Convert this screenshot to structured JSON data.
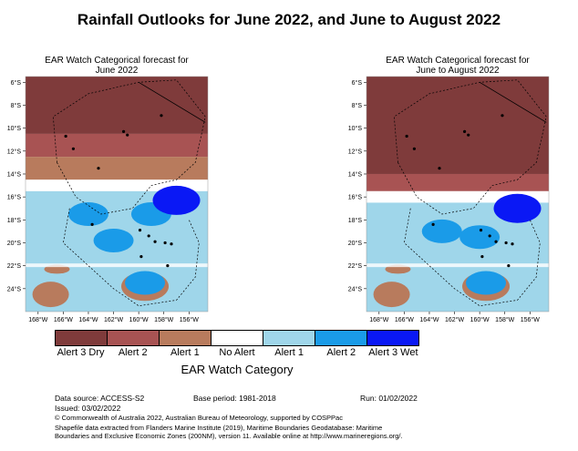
{
  "title": "Rainfall Outlooks for June 2022, and June to August 2022",
  "chart_data": [
    {
      "type": "heatmap",
      "title_line1": "EAR Watch Categorical forecast for",
      "title_line2": "June 2022",
      "x_ticks": [
        "168°W",
        "166°W",
        "164°W",
        "162°W",
        "160°W",
        "158°W",
        "156°W"
      ],
      "y_ticks": [
        "6°S",
        "8°S",
        "10°S",
        "12°S",
        "14°S",
        "16°S",
        "18°S",
        "20°S",
        "22°S",
        "24°S"
      ],
      "xlim": [
        -169,
        -154.5
      ],
      "ylim": [
        -26,
        -5.5
      ],
      "bands": [
        {
          "from_lat": -5.5,
          "to_lat": -10.5,
          "category": "Alert 3 Dry"
        },
        {
          "from_lat": -10.5,
          "to_lat": -12.5,
          "category": "Alert 2"
        },
        {
          "from_lat": -12.5,
          "to_lat": -14.5,
          "category": "Alert 1"
        },
        {
          "from_lat": -14.5,
          "to_lat": -15.5,
          "category": "No Alert"
        },
        {
          "from_lat": -15.5,
          "to_lat": -22,
          "category": "Alert 1"
        },
        {
          "from_lat": -22,
          "to_lat": -26,
          "category": "Alert 1"
        }
      ],
      "blobs": [
        {
          "lon": -159,
          "lat": -17.5,
          "category": "Alert 2"
        },
        {
          "lon": -157,
          "lat": -16.3,
          "category": "Alert 3 Wet"
        },
        {
          "lon": -162,
          "lat": -19.8,
          "category": "Alert 2"
        },
        {
          "lon": -164,
          "lat": -17.5,
          "category": "Alert 2"
        },
        {
          "lon": -159.5,
          "lat": -23.5,
          "category": "Alert 2"
        }
      ]
    },
    {
      "type": "heatmap",
      "title_line1": "EAR Watch Categorical forecast for",
      "title_line2": "June to August 2022",
      "x_ticks": [
        "168°W",
        "166°W",
        "164°W",
        "162°W",
        "160°W",
        "158°W",
        "156°W"
      ],
      "y_ticks": [
        "6°S",
        "8°S",
        "10°S",
        "12°S",
        "14°S",
        "16°S",
        "18°S",
        "20°S",
        "22°S",
        "24°S"
      ],
      "xlim": [
        -169,
        -154.5
      ],
      "ylim": [
        -26,
        -5.5
      ],
      "bands": [
        {
          "from_lat": -5.5,
          "to_lat": -14,
          "category": "Alert 3 Dry"
        },
        {
          "from_lat": -14,
          "to_lat": -15.5,
          "category": "Alert 2"
        },
        {
          "from_lat": -15.5,
          "to_lat": -16.5,
          "category": "No Alert"
        },
        {
          "from_lat": -16.5,
          "to_lat": -22,
          "category": "Alert 1"
        },
        {
          "from_lat": -22,
          "to_lat": -26,
          "category": "Alert 1"
        }
      ],
      "blobs": [
        {
          "lon": -160,
          "lat": -19.5,
          "category": "Alert 2"
        },
        {
          "lon": -157,
          "lat": -17,
          "category": "Alert 3 Wet"
        },
        {
          "lon": -163,
          "lat": -19,
          "category": "Alert 2"
        },
        {
          "lon": -159.5,
          "lat": -23.5,
          "category": "Alert 2"
        }
      ]
    }
  ],
  "legend": {
    "categories": [
      "Alert 3 Dry",
      "Alert 2",
      "Alert 1",
      "No Alert",
      "Alert 1",
      "Alert 2",
      "Alert 3 Wet"
    ],
    "colors": [
      "#7f3b3b",
      "#a85353",
      "#b87b5d",
      "#ffffff",
      "#9fd6ea",
      "#1a9be8",
      "#0a18f5"
    ],
    "title": "EAR Watch Category"
  },
  "colors": {
    "Alert 3 Dry": "#7f3b3b",
    "Alert 2": "#a85353",
    "Alert 1": "#b87b5d",
    "No Alert": "#ffffff",
    "Alert 1 Wet": "#9fd6ea",
    "Alert 2 Wet": "#1a9be8",
    "Alert 3 Wet": "#0a18f5"
  },
  "footer": {
    "source": "Data source: ACCESS-S2",
    "base_period": "Base period: 1981-2018",
    "run": "Run: 01/02/2022",
    "issued": "Issued: 03/02/2022",
    "copyright": "© Commonwealth of Australia 2022, Australian Bureau of Meteorology, supported by COSPPac",
    "shapefile1": "Shapefile data extracted from Flanders Marine Institute (2019), Maritime Boundaries Geodatabase: Maritime",
    "shapefile2": "Boundaries and Exclusive Economic Zones (200NM), version 11. Available online at http://www.marineregions.org/."
  }
}
